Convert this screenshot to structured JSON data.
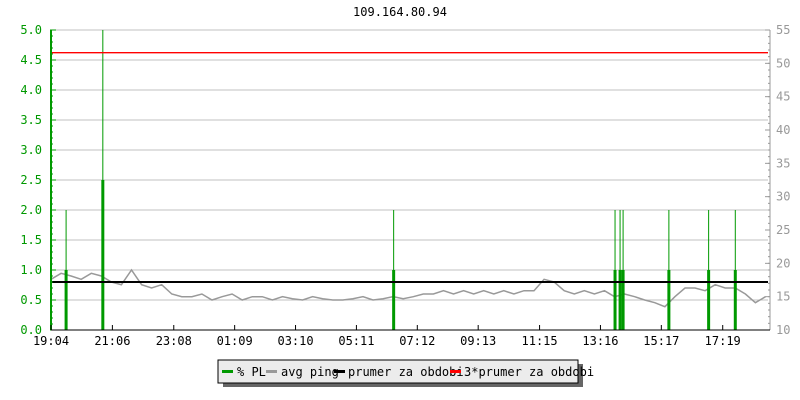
{
  "chart_data": {
    "type": "line",
    "title": "109.164.80.94",
    "grid": true,
    "legend_placement": "bottom",
    "x_ticks": [
      "19:04",
      "21:06",
      "23:08",
      "01:09",
      "03:10",
      "05:11",
      "07:12",
      "09:13",
      "11:15",
      "13:16",
      "15:17",
      "17:19"
    ],
    "x_range": [
      "19:04",
      "18:49"
    ],
    "left_axis": {
      "ylim": [
        0,
        5
      ],
      "ticks": [
        "0.0",
        "0.5",
        "1.0",
        "1.5",
        "2.0",
        "2.5",
        "3.0",
        "3.5",
        "4.0",
        "4.5",
        "5.0"
      ],
      "color": "#009900"
    },
    "right_axis": {
      "ylim": [
        10,
        55
      ],
      "ticks": [
        "10",
        "15",
        "20",
        "25",
        "30",
        "35",
        "40",
        "45",
        "50",
        "55"
      ],
      "color": "#999999"
    },
    "legend": [
      {
        "label": "% PL",
        "color": "#009900"
      },
      {
        "label": "avg ping",
        "color": "#999999"
      },
      {
        "label": "prumer za obdobi",
        "color": "#000000"
      },
      {
        "label": "3*prumer za obdobi",
        "color": "#ff0000"
      }
    ],
    "series": [
      {
        "name": "% PL",
        "axis": "left",
        "style": "spikes",
        "x": [
          "19:34",
          "20:47",
          "06:25",
          "13:45",
          "13:55",
          "14:01",
          "15:32",
          "16:51",
          "17:44"
        ],
        "values": [
          2.0,
          5.0,
          2.0,
          2.0,
          2.0,
          2.0,
          2.0,
          2.0,
          2.0
        ]
      },
      {
        "name": "avg ping",
        "axis": "right",
        "style": "line",
        "interval_minutes": 20,
        "start": "19:04",
        "values": [
          17.6,
          18.5,
          18.1,
          17.6,
          18.5,
          18.1,
          17.2,
          16.8,
          19.0,
          16.8,
          16.3,
          16.8,
          15.4,
          15.0,
          15.0,
          15.4,
          14.5,
          15.0,
          15.4,
          14.5,
          15.0,
          15.0,
          14.5,
          15.0,
          14.7,
          14.5,
          15.0,
          14.7,
          14.5,
          14.5,
          14.7,
          15.0,
          14.5,
          14.7,
          15.0,
          14.7,
          15.0,
          15.4,
          15.4,
          15.9,
          15.4,
          15.9,
          15.4,
          15.9,
          15.4,
          15.9,
          15.4,
          15.9,
          15.9,
          17.6,
          17.2,
          15.9,
          15.4,
          15.9,
          15.4,
          15.9,
          15.0,
          15.4,
          15.0,
          14.5,
          14.1,
          13.5,
          15.0,
          16.3,
          16.3,
          15.9,
          16.8,
          16.3,
          16.3,
          15.4,
          14.1,
          15.0
        ]
      },
      {
        "name": "prumer za obdobi",
        "axis": "right",
        "style": "hline",
        "value": 17.2
      },
      {
        "name": "3*prumer za obdobi",
        "axis": "right",
        "style": "hline",
        "value": 51.6
      }
    ]
  }
}
